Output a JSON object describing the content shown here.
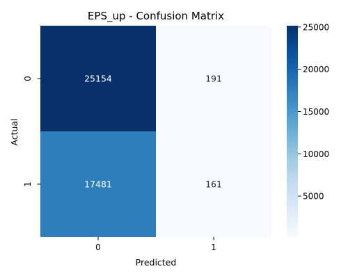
{
  "chart_data": {
    "type": "heatmap",
    "title": "EPS_up - Confusion Matrix",
    "xlabel": "Predicted",
    "ylabel": "Actual",
    "x_categories": [
      "0",
      "1"
    ],
    "y_categories": [
      "0",
      "1"
    ],
    "values": [
      [
        25154,
        191
      ],
      [
        17481,
        161
      ]
    ],
    "colormap": "Blues",
    "color_range": [
      161,
      25154
    ],
    "colorbar": {
      "ticks": [
        5000,
        10000,
        15000,
        20000,
        25000
      ],
      "tick_labels": [
        "5000",
        "10000",
        "15000",
        "20000",
        "25000"
      ]
    },
    "cell_colors": [
      [
        "#08306b",
        "#f7fbff"
      ],
      [
        "#2e7ebc",
        "#f7fbff"
      ]
    ],
    "cell_text_colors": [
      [
        "#ffffff",
        "#262626"
      ],
      [
        "#ffffff",
        "#262626"
      ]
    ],
    "colorbar_gradient": [
      "#f7fbff",
      "#deebf7",
      "#c6dbef",
      "#9ecae1",
      "#6baed6",
      "#4292c6",
      "#2171b5",
      "#08519c",
      "#08306b"
    ]
  }
}
